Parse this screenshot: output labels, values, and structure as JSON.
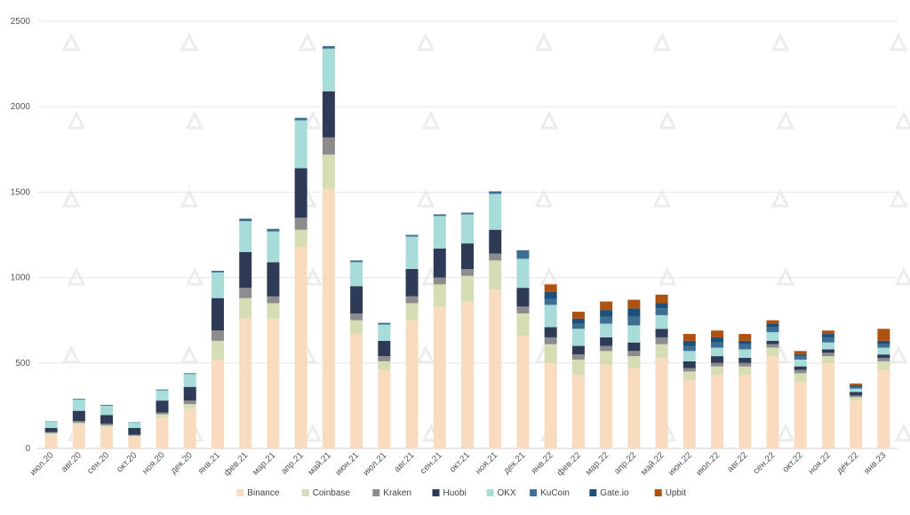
{
  "chart_data": {
    "type": "bar",
    "stacked": true,
    "title": "",
    "xlabel": "",
    "ylabel": "",
    "ylim": [
      0,
      2500
    ],
    "yticks": [
      0,
      500,
      1000,
      1500,
      2000,
      2500
    ],
    "grid": true,
    "legend_position": "bottom",
    "categories": [
      "июл.20",
      "авг.20",
      "сен.20",
      "окт.20",
      "ноя.20",
      "дек.20",
      "янв.21",
      "фев.21",
      "мар.21",
      "апр.21",
      "май.21",
      "июн.21",
      "июл.21",
      "авг.21",
      "сен.21",
      "окт.21",
      "ноя.21",
      "дек.21",
      "янв.22",
      "фев.22",
      "мар.22",
      "апр.22",
      "май.22",
      "июн.22",
      "июл.22",
      "авг.22",
      "сен.22",
      "окт.22",
      "ноя.22",
      "дек.22",
      "янв.23"
    ],
    "series": [
      {
        "name": "Binance",
        "color": "#f9dcc0",
        "values": [
          80,
          140,
          125,
          70,
          180,
          230,
          520,
          760,
          760,
          1180,
          1520,
          670,
          460,
          750,
          830,
          860,
          930,
          660,
          500,
          430,
          490,
          470,
          530,
          400,
          430,
          430,
          540,
          390,
          500,
          280,
          460
        ]
      },
      {
        "name": "Coinbase",
        "color": "#d6dcb4",
        "values": [
          10,
          10,
          10,
          5,
          20,
          30,
          110,
          120,
          90,
          100,
          200,
          80,
          50,
          100,
          130,
          150,
          170,
          130,
          110,
          90,
          80,
          70,
          80,
          50,
          50,
          50,
          50,
          50,
          40,
          20,
          50
        ]
      },
      {
        "name": "Kraken",
        "color": "#8c8c8c",
        "values": [
          5,
          10,
          10,
          5,
          10,
          20,
          60,
          60,
          40,
          70,
          100,
          40,
          30,
          40,
          40,
          40,
          40,
          40,
          40,
          30,
          30,
          30,
          40,
          20,
          20,
          20,
          20,
          20,
          20,
          10,
          20
        ]
      },
      {
        "name": "Huobi",
        "color": "#2f3b56",
        "values": [
          25,
          60,
          50,
          40,
          70,
          80,
          190,
          210,
          200,
          290,
          270,
          160,
          90,
          160,
          170,
          150,
          140,
          110,
          60,
          50,
          50,
          50,
          50,
          40,
          40,
          30,
          20,
          20,
          20,
          20,
          20
        ]
      },
      {
        "name": "OKX",
        "color": "#a8dcd8",
        "values": [
          35,
          65,
          55,
          30,
          60,
          75,
          150,
          180,
          180,
          280,
          250,
          140,
          95,
          190,
          190,
          170,
          210,
          170,
          130,
          100,
          80,
          100,
          80,
          60,
          50,
          50,
          50,
          40,
          40,
          20,
          40
        ]
      },
      {
        "name": "KuCoin",
        "color": "#3d6f93",
        "values": [
          3,
          5,
          5,
          3,
          5,
          5,
          10,
          15,
          15,
          15,
          15,
          10,
          10,
          10,
          10,
          10,
          15,
          50,
          35,
          30,
          40,
          50,
          40,
          30,
          30,
          30,
          30,
          20,
          30,
          10,
          20
        ]
      },
      {
        "name": "Gate.io",
        "color": "#1d4f7a",
        "values": [
          0,
          0,
          0,
          0,
          0,
          0,
          0,
          0,
          0,
          0,
          0,
          0,
          0,
          0,
          0,
          0,
          0,
          0,
          40,
          30,
          40,
          50,
          30,
          30,
          30,
          20,
          20,
          10,
          20,
          10,
          20
        ]
      },
      {
        "name": "Upbit",
        "color": "#b0520f",
        "values": [
          0,
          0,
          0,
          0,
          0,
          0,
          0,
          0,
          0,
          0,
          0,
          0,
          0,
          0,
          0,
          0,
          0,
          0,
          45,
          40,
          50,
          50,
          50,
          40,
          40,
          40,
          20,
          20,
          20,
          10,
          70
        ]
      }
    ]
  }
}
